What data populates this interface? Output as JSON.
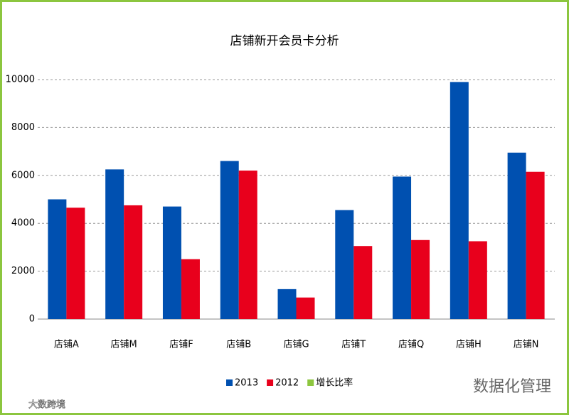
{
  "chart_data": {
    "type": "bar",
    "title": "店铺新开会员卡分析",
    "categories": [
      "店铺A",
      "店铺M",
      "店铺F",
      "店铺B",
      "店铺G",
      "店铺T",
      "店铺Q",
      "店铺H",
      "店铺N"
    ],
    "series": [
      {
        "name": "2013",
        "color": "#0050b0",
        "values": [
          5000,
          6250,
          4700,
          6600,
          1250,
          4550,
          5950,
          9900,
          6950
        ]
      },
      {
        "name": "2012",
        "color": "#e8001c",
        "values": [
          4650,
          4750,
          2500,
          6200,
          900,
          3050,
          3300,
          3250,
          6150
        ]
      },
      {
        "name": "增长比率",
        "color": "#8dc63f",
        "values": [
          null,
          null,
          null,
          null,
          null,
          null,
          null,
          null,
          null
        ]
      }
    ],
    "ylim": [
      0,
      10000
    ],
    "yticks": [
      0,
      2000,
      4000,
      6000,
      8000,
      10000
    ],
    "grid": true,
    "watermarks": [
      "数据化管理",
      "大数跨境"
    ]
  }
}
